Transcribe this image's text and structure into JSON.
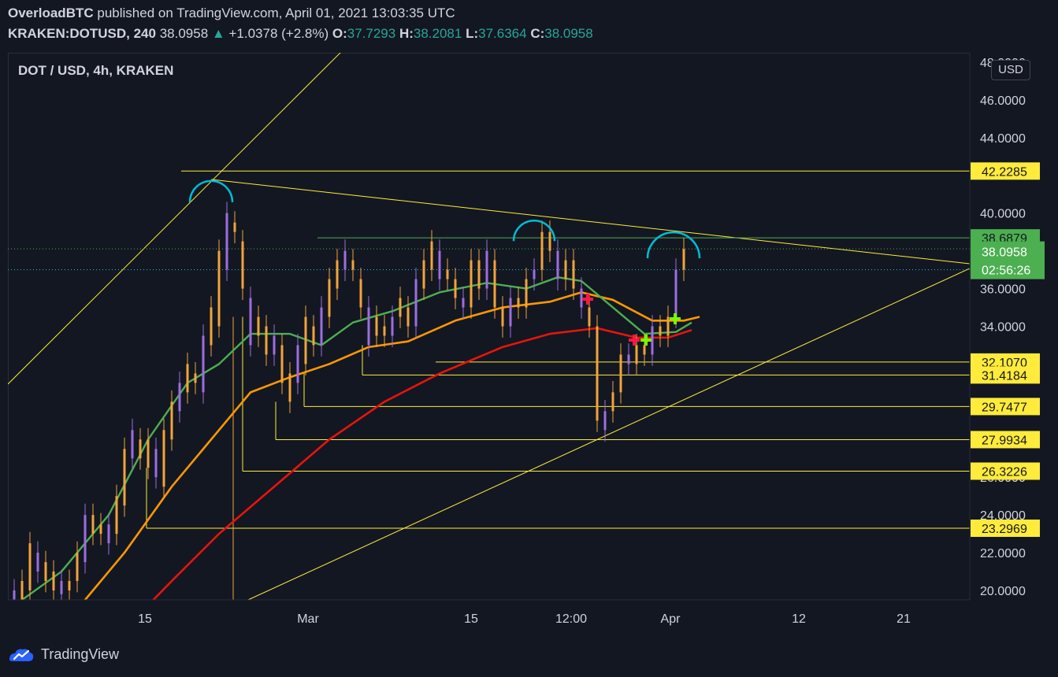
{
  "header": {
    "author": "OverloadBTC",
    "published_text": "published on TradingView.com, April 01, 2021 13:03:35 UTC",
    "symbol": "KRAKEN:DOTUSD, 240",
    "last": "38.0958",
    "change_arrow": "▲",
    "change": "+1.0378 (+2.8%)",
    "o_label": "O:",
    "o": "37.7293",
    "h_label": "H:",
    "h": "38.2081",
    "l_label": "L:",
    "l": "37.6364",
    "c_label": "C:",
    "c": "38.0958"
  },
  "legend": "DOT / USD, 4h, KRAKEN",
  "currency_button": "USD",
  "footer": {
    "brand": "TradingView",
    "logo_icon": "tradingview-logo-icon"
  },
  "colors": {
    "background": "#131722",
    "candle": "#f2a33a",
    "candle_alt": "#9c6ee0",
    "ema_green": "#4caf50",
    "ema_orange": "#ff9800",
    "ema_red": "#e8140c",
    "annotation_yellow": "#ffeb3b",
    "arc_cyan": "#00bcd4",
    "level_green": "#4caf50",
    "price_label": "#4caf50"
  },
  "chart_data": {
    "type": "candlestick",
    "title": "DOT / USD, 4h, KRAKEN",
    "y_axis_side": "right",
    "ylim": [
      19.5,
      48.5
    ],
    "y_ticks": [
      "20.0000",
      "22.0000",
      "24.0000",
      "26.0000",
      "34.0000",
      "36.0000",
      "40.0000",
      "44.0000",
      "46.0000",
      "48.0000"
    ],
    "x_ticks": [
      "15",
      "Mar",
      "15",
      "12:00",
      "Apr",
      "12",
      "21"
    ],
    "current_price": "38.0958",
    "countdown": "02:56:26",
    "levels": [
      {
        "value": 42.2285,
        "label": "42.2285",
        "color": "yellow"
      },
      {
        "value": 38.6879,
        "label": "38.6879",
        "color": "green"
      },
      {
        "value": 32.107,
        "label": "32.1070",
        "color": "yellow"
      },
      {
        "value": 31.4184,
        "label": "31.4184",
        "color": "yellow"
      },
      {
        "value": 29.7477,
        "label": "29.7477",
        "color": "yellow"
      },
      {
        "value": 27.9934,
        "label": "27.9934",
        "color": "yellow"
      },
      {
        "value": 26.3226,
        "label": "26.3226",
        "color": "yellow"
      },
      {
        "value": 23.2969,
        "label": "23.2969",
        "color": "yellow"
      }
    ],
    "ema_green": [
      [
        0,
        19.2
      ],
      [
        60,
        21.0
      ],
      [
        120,
        24.0
      ],
      [
        170,
        28.0
      ],
      [
        220,
        31.0
      ],
      [
        260,
        32.0
      ],
      [
        300,
        33.6
      ],
      [
        350,
        33.6
      ],
      [
        390,
        33.0
      ],
      [
        430,
        34.2
      ],
      [
        480,
        34.8
      ],
      [
        540,
        35.8
      ],
      [
        600,
        36.3
      ],
      [
        650,
        36.0
      ],
      [
        690,
        36.6
      ],
      [
        720,
        36.4
      ],
      [
        760,
        35.0
      ],
      [
        800,
        33.6
      ],
      [
        840,
        33.7
      ],
      [
        860,
        34.2
      ]
    ],
    "ema_orange": [
      [
        0,
        17.5
      ],
      [
        80,
        19.0
      ],
      [
        140,
        22.0
      ],
      [
        200,
        25.5
      ],
      [
        260,
        28.5
      ],
      [
        300,
        30.5
      ],
      [
        350,
        31.3
      ],
      [
        400,
        32.0
      ],
      [
        450,
        32.9
      ],
      [
        500,
        33.2
      ],
      [
        560,
        34.3
      ],
      [
        620,
        35.0
      ],
      [
        680,
        35.3
      ],
      [
        720,
        35.8
      ],
      [
        760,
        35.4
      ],
      [
        810,
        34.3
      ],
      [
        850,
        34.3
      ],
      [
        870,
        34.5
      ]
    ],
    "ema_red": [
      [
        130,
        17.5
      ],
      [
        200,
        20.5
      ],
      [
        260,
        23.0
      ],
      [
        330,
        25.5
      ],
      [
        400,
        28.0
      ],
      [
        470,
        30.0
      ],
      [
        540,
        31.5
      ],
      [
        620,
        32.9
      ],
      [
        680,
        33.6
      ],
      [
        740,
        33.9
      ],
      [
        790,
        33.4
      ],
      [
        830,
        33.4
      ],
      [
        860,
        33.8
      ]
    ],
    "candles": [
      [
        0,
        19.2,
        20.0
      ],
      [
        10,
        19.5,
        20.5
      ],
      [
        20,
        20.0,
        22.5
      ],
      [
        30,
        21.0,
        22.0
      ],
      [
        40,
        21.5,
        20.5
      ],
      [
        50,
        20.0,
        21.0
      ],
      [
        60,
        19.8,
        20.5
      ],
      [
        70,
        20.0,
        20.5
      ],
      [
        80,
        20.5,
        22.0
      ],
      [
        90,
        21.5,
        24.0
      ],
      [
        100,
        23.0,
        24.0
      ],
      [
        110,
        23.5,
        23.0
      ],
      [
        120,
        22.5,
        23.5
      ],
      [
        130,
        23.0,
        25.0
      ],
      [
        140,
        24.5,
        27.5
      ],
      [
        150,
        27.0,
        28.5
      ],
      [
        160,
        28.0,
        27.0
      ],
      [
        170,
        26.5,
        28.0
      ],
      [
        180,
        27.5,
        26.0
      ],
      [
        190,
        25.5,
        28.5
      ],
      [
        200,
        28.0,
        30.0
      ],
      [
        210,
        29.5,
        31.0
      ],
      [
        220,
        30.5,
        32.0
      ],
      [
        230,
        31.5,
        31.0
      ],
      [
        240,
        30.5,
        33.5
      ],
      [
        250,
        33.0,
        35.0
      ],
      [
        260,
        34.0,
        38.0
      ],
      [
        270,
        37.0,
        40.0
      ],
      [
        280,
        39.5,
        39.0
      ],
      [
        290,
        38.5,
        36.0
      ],
      [
        300,
        35.5,
        33.0
      ],
      [
        310,
        33.5,
        34.5
      ],
      [
        320,
        34.0,
        32.5
      ],
      [
        330,
        32.5,
        33.5
      ],
      [
        340,
        33.0,
        31.0
      ],
      [
        350,
        31.5,
        30.0
      ],
      [
        360,
        31.0,
        33.0
      ],
      [
        370,
        32.0,
        34.5
      ],
      [
        380,
        34.0,
        33.0
      ],
      [
        390,
        33.0,
        35.0
      ],
      [
        400,
        34.5,
        36.5
      ],
      [
        410,
        36.0,
        37.5
      ],
      [
        420,
        37.0,
        38.0
      ],
      [
        430,
        37.5,
        37.0
      ],
      [
        440,
        36.5,
        35.0
      ],
      [
        450,
        35.0,
        33.0
      ],
      [
        460,
        33.5,
        34.5
      ],
      [
        470,
        34.0,
        33.5
      ],
      [
        480,
        33.5,
        34.5
      ],
      [
        490,
        34.5,
        35.5
      ],
      [
        500,
        35.0,
        34.0
      ],
      [
        510,
        34.0,
        36.5
      ],
      [
        520,
        36.0,
        37.5
      ],
      [
        530,
        37.0,
        38.5
      ],
      [
        540,
        38.0,
        36.5
      ],
      [
        550,
        36.5,
        37.0
      ],
      [
        560,
        36.5,
        35.5
      ],
      [
        570,
        35.5,
        35.0
      ],
      [
        580,
        35.0,
        37.5
      ],
      [
        590,
        37.5,
        36.0
      ],
      [
        600,
        36.0,
        38.0
      ],
      [
        610,
        37.5,
        35.0
      ],
      [
        620,
        35.0,
        34.0
      ],
      [
        630,
        34.0,
        35.5
      ],
      [
        640,
        35.5,
        35.0
      ],
      [
        650,
        35.0,
        36.5
      ],
      [
        660,
        36.5,
        37.0
      ],
      [
        670,
        37.0,
        39.0
      ],
      [
        680,
        39.0,
        38.0
      ],
      [
        690,
        38.0,
        36.5
      ],
      [
        700,
        36.5,
        37.5
      ],
      [
        710,
        37.5,
        36.0
      ],
      [
        720,
        36.0,
        35.0
      ],
      [
        730,
        35.0,
        34.0
      ],
      [
        740,
        34.0,
        29.0
      ],
      [
        750,
        28.5,
        29.5
      ],
      [
        760,
        29.5,
        30.5
      ],
      [
        770,
        30.5,
        32.5
      ],
      [
        780,
        32.5,
        32.0
      ],
      [
        790,
        32.0,
        33.0
      ],
      [
        800,
        33.0,
        32.5
      ],
      [
        810,
        32.5,
        34.0
      ],
      [
        820,
        34.0,
        33.5
      ],
      [
        830,
        33.5,
        34.5
      ],
      [
        840,
        34.5,
        37.0
      ],
      [
        850,
        37.0,
        38.1
      ]
    ],
    "annotations": {
      "arcs": [
        {
          "cx": 268,
          "cy": 242,
          "r": 27
        },
        {
          "cx": 678,
          "cy": 292,
          "r": 26
        },
        {
          "cx": 855,
          "cy": 310,
          "r": 33
        }
      ],
      "markers_plus": [
        {
          "x": 746,
          "y": 380,
          "color": "red"
        },
        {
          "x": 805,
          "y": 432,
          "color": "red"
        },
        {
          "x": 820,
          "y": 432,
          "color": "green"
        },
        {
          "x": 857,
          "y": 405,
          "color": "green"
        }
      ]
    }
  }
}
